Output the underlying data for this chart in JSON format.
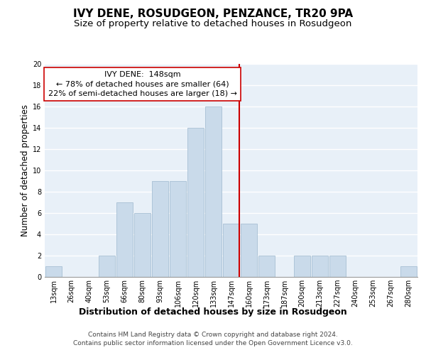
{
  "title": "IVY DENE, ROSUDGEON, PENZANCE, TR20 9PA",
  "subtitle": "Size of property relative to detached houses in Rosudgeon",
  "xlabel": "Distribution of detached houses by size in Rosudgeon",
  "ylabel": "Number of detached properties",
  "categories": [
    "13sqm",
    "26sqm",
    "40sqm",
    "53sqm",
    "66sqm",
    "80sqm",
    "93sqm",
    "106sqm",
    "120sqm",
    "133sqm",
    "147sqm",
    "160sqm",
    "173sqm",
    "187sqm",
    "200sqm",
    "213sqm",
    "227sqm",
    "240sqm",
    "253sqm",
    "267sqm",
    "280sqm"
  ],
  "values": [
    1,
    0,
    0,
    2,
    7,
    6,
    9,
    9,
    14,
    16,
    5,
    5,
    2,
    0,
    2,
    2,
    2,
    0,
    0,
    0,
    1
  ],
  "bar_color": "#c9daea",
  "bar_edge_color": "#a8c0d4",
  "marker_index": 10,
  "marker_color": "#cc0000",
  "annotation_title": "IVY DENE:  148sqm",
  "annotation_line1": "← 78% of detached houses are smaller (64)",
  "annotation_line2": "22% of semi-detached houses are larger (18) →",
  "footer1": "Contains HM Land Registry data © Crown copyright and database right 2024.",
  "footer2": "Contains public sector information licensed under the Open Government Licence v3.0.",
  "ylim": [
    0,
    20
  ],
  "yticks": [
    0,
    2,
    4,
    6,
    8,
    10,
    12,
    14,
    16,
    18,
    20
  ],
  "bg_color": "#e8f0f8",
  "grid_color": "#ffffff",
  "title_fontsize": 11,
  "subtitle_fontsize": 9.5,
  "ylabel_fontsize": 8.5,
  "xlabel_fontsize": 9,
  "tick_fontsize": 7,
  "annotation_fontsize": 8,
  "footer_fontsize": 6.5
}
